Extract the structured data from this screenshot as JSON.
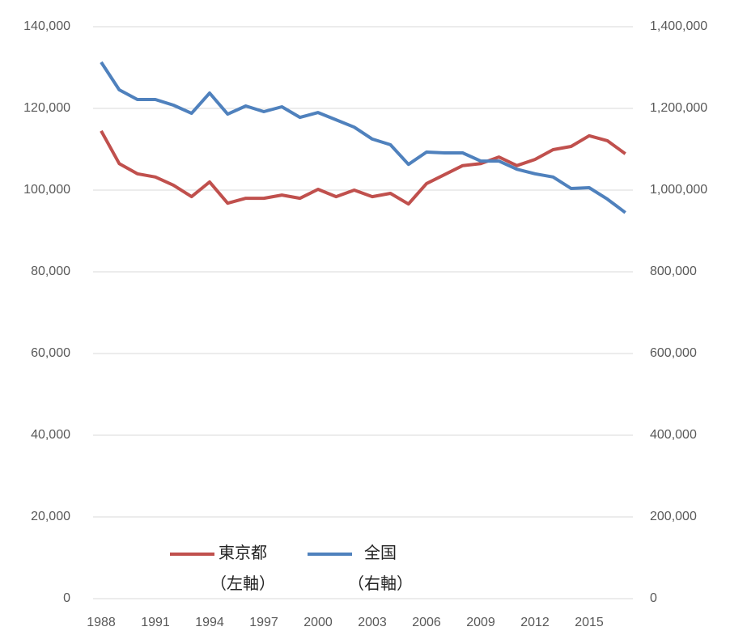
{
  "chart_data": {
    "type": "line",
    "categories": [
      "1988",
      null,
      null,
      "1991",
      null,
      null,
      "1994",
      null,
      null,
      "1997",
      null,
      null,
      "2000",
      null,
      null,
      "2003",
      null,
      null,
      "2006",
      null,
      null,
      "2009",
      null,
      null,
      "2012",
      null,
      null,
      "2015",
      null,
      null
    ],
    "series": [
      {
        "name": "東京都\n（左軸）",
        "color": "#c0504d",
        "axis": "y",
        "values": [
          114500,
          106500,
          104000,
          103200,
          101200,
          98400,
          102000,
          96800,
          98000,
          98000,
          98800,
          98000,
          100200,
          98400,
          100000,
          98400,
          99200,
          96600,
          101600,
          103800,
          106000,
          106500,
          108100,
          106000,
          107500,
          109900,
          110700,
          113300,
          112100,
          108900
        ]
      },
      {
        "name": "全国\n（右軸）",
        "color": "#4f81bd",
        "axis": "y2",
        "values": [
          1313000,
          1245500,
          1221800,
          1221800,
          1208000,
          1188000,
          1237600,
          1186000,
          1206000,
          1192000,
          1204000,
          1178000,
          1190000,
          1172000,
          1154000,
          1125000,
          1111000,
          1063000,
          1093000,
          1091000,
          1091000,
          1071000,
          1071000,
          1051000,
          1040000,
          1032000,
          1004000,
          1006000,
          978000,
          945000
        ]
      }
    ],
    "ylim": [
      0,
      140000
    ],
    "yticks": [
      0,
      {
        "value": 20000,
        "label": "20,000"
      },
      {
        "value": 40000,
        "label": "40,000"
      },
      {
        "value": 60000,
        "label": "60,000"
      },
      {
        "value": 80000,
        "label": "80,000"
      },
      {
        "value": 100000,
        "label": "100,000"
      },
      {
        "value": 120000,
        "label": "120,000"
      },
      {
        "value": 140000,
        "label": "140,000"
      }
    ],
    "y2lim": [
      0,
      1400000
    ],
    "y2ticks": [
      0,
      {
        "value": 200000,
        "label": "200,000"
      },
      {
        "value": 400000,
        "label": "400,000"
      },
      {
        "value": 600000,
        "label": "600,000"
      },
      {
        "value": 800000,
        "label": "800,000"
      },
      {
        "value": 1000000,
        "label": "1,000,000"
      },
      {
        "value": 1200000,
        "label": "1,200,000"
      },
      {
        "value": 1400000,
        "label": "1,400,000"
      }
    ],
    "grid": true,
    "legend": "lower left"
  }
}
